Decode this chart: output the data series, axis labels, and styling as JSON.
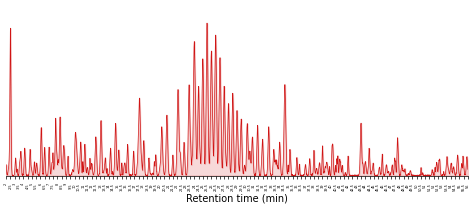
{
  "title": "",
  "xlabel": "Retention time (min)",
  "ylabel": "",
  "xlim": [
    2.0,
    56.0
  ],
  "ylim": [
    0,
    1.0
  ],
  "line_color": "#cc0000",
  "background_color": "#ffffff"
}
